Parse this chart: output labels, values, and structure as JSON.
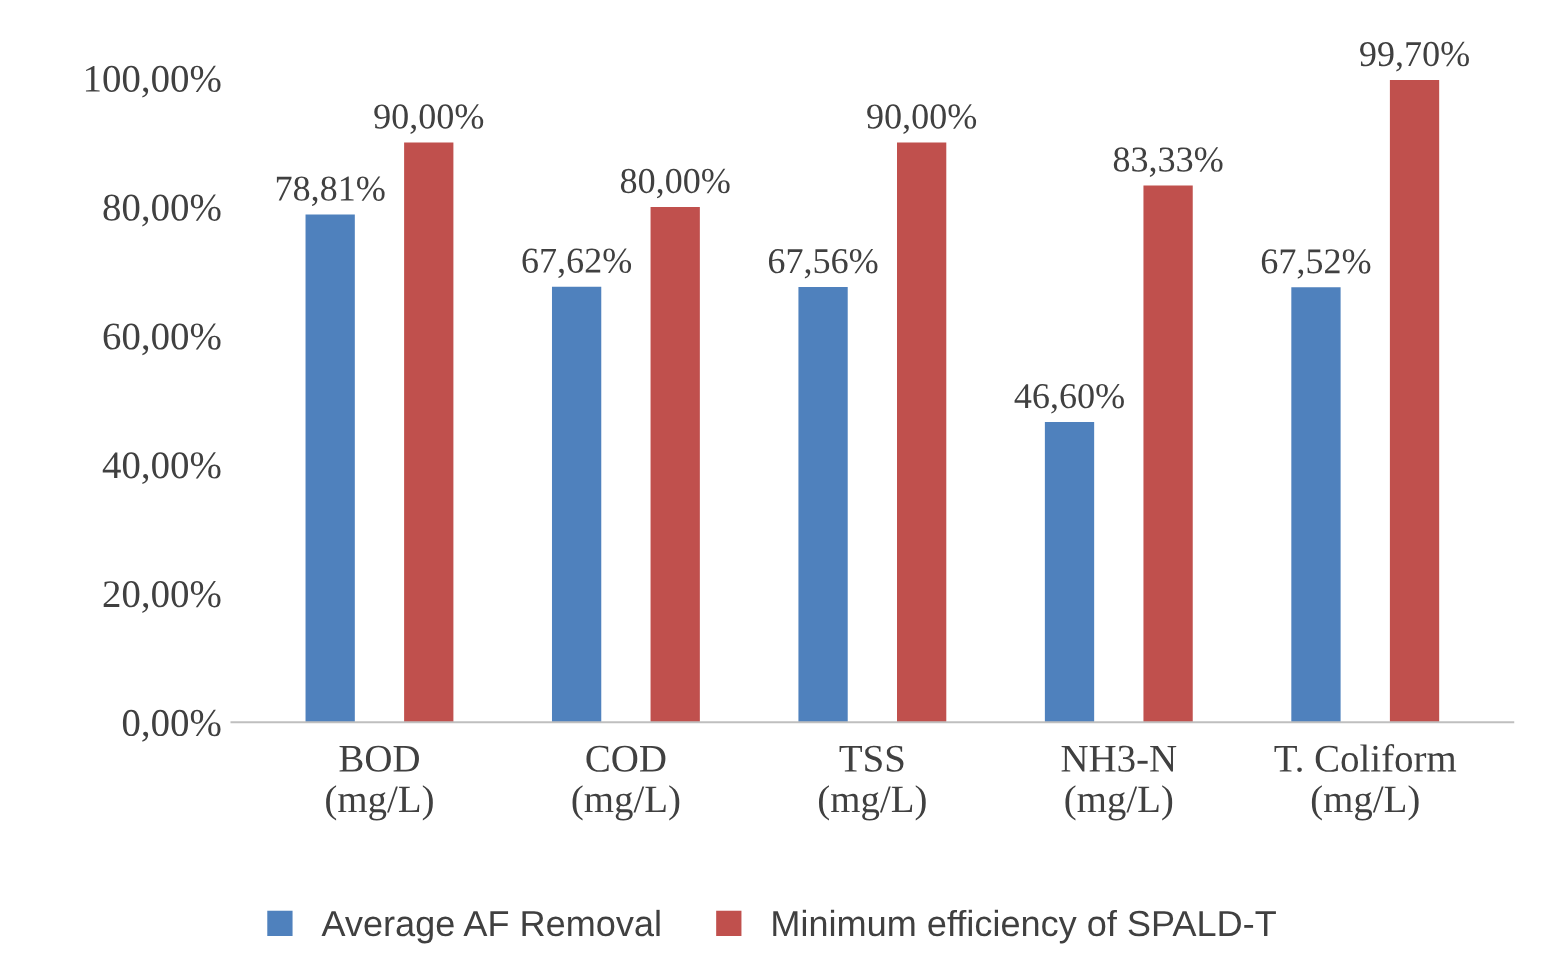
{
  "chart_data": {
    "type": "bar",
    "categories": [
      "BOD\n(mg/L)",
      "COD\n(mg/L)",
      "TSS\n(mg/L)",
      "NH3-N\n(mg/L)",
      "T. Coliform\n(mg/L)"
    ],
    "series": [
      {
        "name": "Average AF Removal",
        "color": "#4f81bd",
        "values": [
          78.81,
          67.62,
          67.56,
          46.6,
          67.52
        ],
        "value_labels": [
          "78,81%",
          "67,62%",
          "67,56%",
          "46,60%",
          "67,52%"
        ]
      },
      {
        "name": "Minimum efficiency of SPALD-T",
        "color": "#c0504d",
        "values": [
          90,
          80,
          90,
          83.33,
          99.7
        ],
        "value_labels": [
          "90,00%",
          "80,00%",
          "90,00%",
          "83,33%",
          "99,70%"
        ]
      }
    ],
    "ylim": [
      0,
      100
    ],
    "yticks": [
      {
        "value": 0,
        "label": "0,00%"
      },
      {
        "value": 20,
        "label": "20,00%"
      },
      {
        "value": 40,
        "label": "40,00%"
      },
      {
        "value": 60,
        "label": "60,00%"
      },
      {
        "value": 80,
        "label": "80,00%"
      },
      {
        "value": 100,
        "label": "100,00%"
      }
    ],
    "grid": false,
    "legend": "bottom"
  }
}
